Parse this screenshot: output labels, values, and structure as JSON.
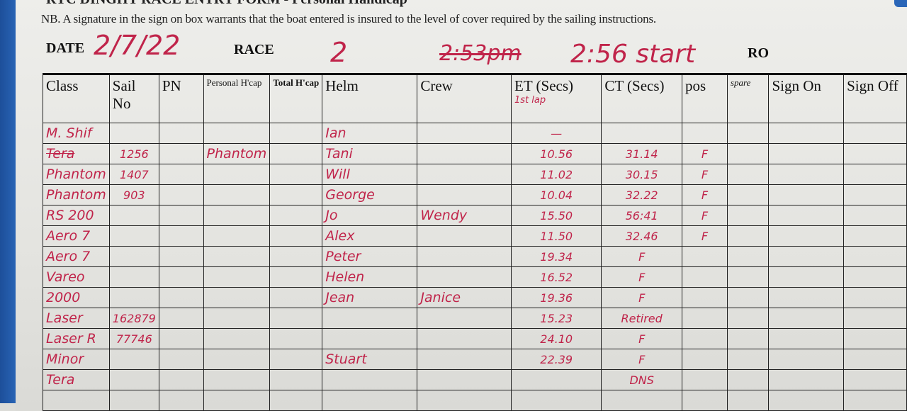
{
  "form": {
    "title": "RYC DINGHY RACE ENTRY FORM - Personal Handicap",
    "note": "NB. A signature in the sign on box warrants that the boat entered is insured to the level of cover required by the sailing instructions.",
    "date_label": "DATE",
    "date_value": "2/7/22",
    "race_label": "RACE",
    "race_value": "2",
    "start_crossed": "2:53pm",
    "start_value": "2:56 start",
    "ro_label": "RO"
  },
  "table": {
    "headers": [
      "Class",
      "Sail No",
      "PN",
      "Personal H'cap",
      "Total H'cap",
      "Helm",
      "Crew",
      "ET (Secs)",
      "CT (Secs)",
      "pos",
      "spare",
      "Sign On",
      "Sign Off"
    ],
    "et_note": "1st lap",
    "rows": [
      {
        "class": "M. Shif",
        "sail": "",
        "pn": "",
        "personal": "",
        "total": "",
        "helm": "Ian",
        "crew": "",
        "et": "—",
        "ct": "",
        "pos": ""
      },
      {
        "class": "Tera",
        "sail": "1256",
        "pn": "",
        "personal": "Phantom",
        "total": "",
        "helm": "Tani",
        "crew": "",
        "et": "10.56",
        "ct": "31.14",
        "pos": "F"
      },
      {
        "class": "Phantom",
        "sail": "1407",
        "pn": "",
        "personal": "",
        "total": "",
        "helm": "Will",
        "crew": "",
        "et": "11.02",
        "ct": "30.15",
        "pos": "F"
      },
      {
        "class": "Phantom",
        "sail": "903",
        "pn": "",
        "personal": "",
        "total": "",
        "helm": "George",
        "crew": "",
        "et": "10.04",
        "ct": "32.22",
        "pos": "F"
      },
      {
        "class": "RS 200",
        "sail": "",
        "pn": "",
        "personal": "",
        "total": "",
        "helm": "Jo",
        "crew": "Wendy",
        "et": "15.50",
        "ct": "56:41",
        "pos": "F"
      },
      {
        "class": "Aero 7",
        "sail": "",
        "pn": "",
        "personal": "",
        "total": "",
        "helm": "Alex",
        "crew": "",
        "et": "11.50",
        "ct": "32.46",
        "pos": "F"
      },
      {
        "class": "Aero 7",
        "sail": "",
        "pn": "",
        "personal": "",
        "total": "",
        "helm": "Peter",
        "crew": "",
        "et": "19.34",
        "ct": "F",
        "pos": ""
      },
      {
        "class": "Vareo",
        "sail": "",
        "pn": "",
        "personal": "",
        "total": "",
        "helm": "Helen",
        "crew": "",
        "et": "16.52",
        "ct": "F",
        "pos": ""
      },
      {
        "class": "2000",
        "sail": "",
        "pn": "",
        "personal": "",
        "total": "",
        "helm": "Jean",
        "crew": "Janice",
        "et": "19.36",
        "ct": "F",
        "pos": ""
      },
      {
        "class": "Laser",
        "sail": "162879",
        "pn": "",
        "personal": "",
        "total": "",
        "helm": "",
        "crew": "",
        "et": "15.23",
        "ct": "Retired",
        "pos": ""
      },
      {
        "class": "Laser R",
        "sail": "77746",
        "pn": "",
        "personal": "",
        "total": "",
        "helm": "",
        "crew": "",
        "et": "24.10",
        "ct": "F",
        "pos": ""
      },
      {
        "class": "Minor",
        "sail": "",
        "pn": "",
        "personal": "",
        "total": "",
        "helm": "Stuart",
        "crew": "",
        "et": "22.39",
        "ct": "F",
        "pos": ""
      },
      {
        "class": "Tera",
        "sail": "",
        "pn": "",
        "personal": "",
        "total": "",
        "helm": "",
        "crew": "",
        "et": "",
        "ct": "DNS",
        "pos": ""
      },
      {
        "class": "",
        "sail": "",
        "pn": "",
        "personal": "",
        "total": "",
        "helm": "",
        "crew": "",
        "et": "",
        "ct": "",
        "pos": ""
      }
    ]
  },
  "colors": {
    "ink": "#c0244a",
    "binder": "#2a66b8",
    "paper": "#e8e8e5"
  }
}
